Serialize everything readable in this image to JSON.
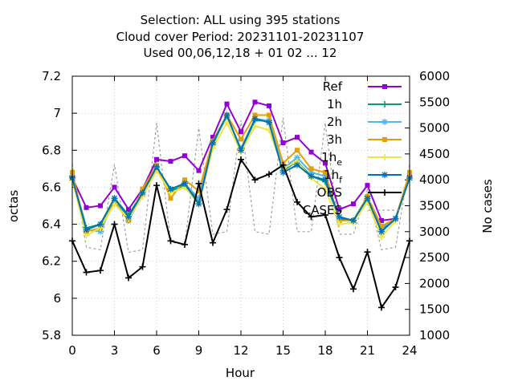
{
  "title_lines": [
    "Selection: ALL using   395 stations",
    "Cloud cover   Period: 20231101-20231107",
    "Used  00,06,12,18 + 01 02 ... 12"
  ],
  "chart_data": {
    "type": "line",
    "xlabel": "Hour",
    "ylabel": "octas",
    "y2label": "No cases",
    "x": [
      0,
      1,
      2,
      3,
      4,
      5,
      6,
      7,
      8,
      9,
      10,
      11,
      12,
      13,
      14,
      15,
      16,
      17,
      18,
      19,
      20,
      21,
      22,
      23,
      24
    ],
    "xticks": [
      0,
      3,
      6,
      9,
      12,
      15,
      18,
      21,
      24
    ],
    "xlim": [
      0,
      24
    ],
    "ylim": [
      5.8,
      7.2
    ],
    "yticks": [
      "5.8",
      "6",
      "6.2",
      "6.4",
      "6.6",
      "6.8",
      "7",
      "7.2"
    ],
    "y2lim": [
      1000,
      6000
    ],
    "y2ticks": [
      "1000",
      "1500",
      "2000",
      "2500",
      "3000",
      "3500",
      "4000",
      "4500",
      "5000",
      "5500",
      "6000"
    ],
    "grid": true,
    "legend_position": "top-right",
    "series": [
      {
        "name": "Ref",
        "legend_main": "Ref",
        "legend_sub": "",
        "color": "#9400d3",
        "marker": "square",
        "values": [
          6.65,
          6.49,
          6.5,
          6.6,
          6.48,
          6.59,
          6.75,
          6.74,
          6.77,
          6.69,
          6.87,
          7.05,
          6.9,
          7.06,
          7.04,
          6.84,
          6.87,
          6.79,
          6.73,
          6.48,
          6.51,
          6.61,
          6.42,
          6.43,
          6.66
        ]
      },
      {
        "name": "1h",
        "legend_main": "1h",
        "legend_sub": "",
        "color": "#009e73",
        "marker": "plus",
        "values": [
          6.66,
          6.38,
          6.4,
          6.54,
          6.45,
          6.57,
          6.71,
          6.58,
          6.61,
          6.53,
          6.83,
          6.99,
          6.8,
          6.96,
          6.96,
          6.69,
          6.74,
          6.66,
          6.63,
          6.43,
          6.42,
          6.55,
          6.37,
          6.43,
          6.65
        ]
      },
      {
        "name": "2h",
        "legend_main": "2h",
        "legend_sub": "",
        "color": "#56b4e9",
        "marker": "star",
        "values": [
          6.65,
          6.37,
          6.36,
          6.53,
          6.42,
          6.56,
          6.7,
          6.59,
          6.62,
          6.54,
          6.84,
          6.98,
          6.81,
          6.97,
          6.96,
          6.7,
          6.76,
          6.68,
          6.66,
          6.42,
          6.42,
          6.55,
          6.38,
          6.43,
          6.66
        ]
      },
      {
        "name": "3h",
        "legend_main": "3h",
        "legend_sub": "",
        "color": "#e69f00",
        "marker": "square",
        "values": [
          6.68,
          6.36,
          6.38,
          6.52,
          6.42,
          6.59,
          6.72,
          6.54,
          6.64,
          6.58,
          6.85,
          6.99,
          6.86,
          6.99,
          6.99,
          6.73,
          6.8,
          6.7,
          6.68,
          6.42,
          6.42,
          6.55,
          6.39,
          6.43,
          6.68
        ]
      },
      {
        "name": "1he",
        "legend_main": "1h",
        "legend_sub": "e",
        "color": "#f0e442",
        "marker": "plus",
        "values": [
          6.64,
          6.34,
          6.38,
          6.51,
          6.43,
          6.55,
          6.69,
          6.57,
          6.6,
          6.51,
          6.81,
          6.95,
          6.79,
          6.93,
          6.91,
          6.7,
          6.74,
          6.65,
          6.59,
          6.4,
          6.41,
          6.52,
          6.33,
          6.42,
          6.65
        ]
      },
      {
        "name": "1hf",
        "legend_main": "1h",
        "legend_sub": "f",
        "color": "#0072b2",
        "marker": "star",
        "values": [
          6.65,
          6.37,
          6.4,
          6.54,
          6.44,
          6.57,
          6.71,
          6.59,
          6.62,
          6.51,
          6.84,
          6.99,
          6.8,
          6.97,
          6.95,
          6.68,
          6.72,
          6.66,
          6.64,
          6.44,
          6.42,
          6.54,
          6.36,
          6.43,
          6.65
        ]
      },
      {
        "name": "OBS",
        "legend_main": "OBS",
        "legend_sub": "",
        "color": "#000000",
        "marker": "plus",
        "values": [
          6.31,
          6.14,
          6.15,
          6.4,
          6.11,
          6.17,
          6.61,
          6.31,
          6.29,
          6.62,
          6.3,
          6.48,
          6.75,
          6.64,
          6.67,
          6.72,
          6.52,
          6.44,
          6.45,
          6.22,
          6.05,
          6.25,
          5.95,
          6.06,
          6.31
        ]
      },
      {
        "name": "CASES",
        "legend_main": "CASES",
        "legend_sub": "",
        "color": "#a0a0a0",
        "axis": "y2",
        "values": [
          4300,
          2700,
          2650,
          4300,
          2600,
          2650,
          5100,
          2800,
          2750,
          5000,
          2950,
          3000,
          5150,
          3000,
          2950,
          5200,
          3000,
          3000,
          5100,
          2950,
          2950,
          3800,
          2650,
          2700,
          4300
        ]
      }
    ]
  }
}
